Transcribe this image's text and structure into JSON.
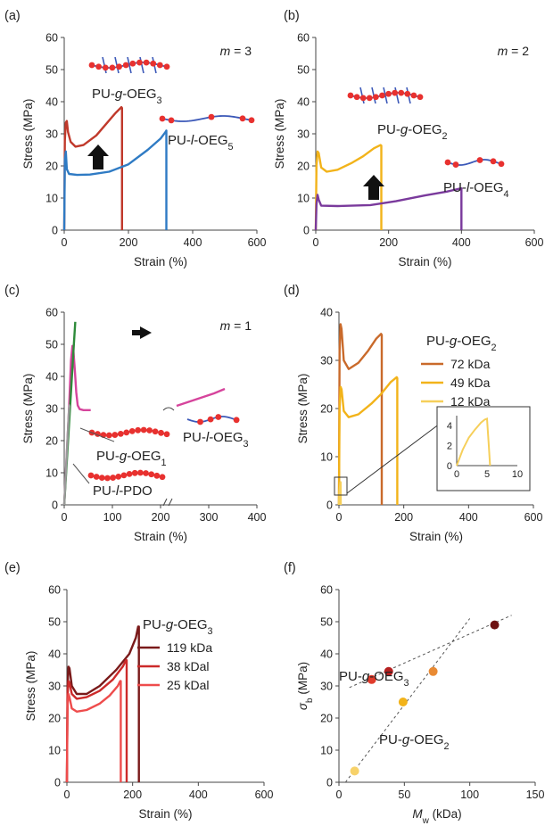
{
  "figure": {
    "panel_labels": [
      "(a)",
      "(b)",
      "(c)",
      "(d)",
      "(e)",
      "(f)"
    ]
  },
  "chart_data": [
    {
      "panel": "(a)",
      "type": "line",
      "annotation": "m = 3",
      "xlabel": "Strain (%)",
      "ylabel": "Stress (MPa)",
      "xlim": [
        0,
        600
      ],
      "ylim": [
        0,
        60
      ],
      "xticks": [
        "0",
        "200",
        "400",
        "600"
      ],
      "yticks": [
        "0",
        "10",
        "20",
        "30",
        "40",
        "50",
        "60"
      ],
      "series": [
        {
          "name": "PU-g-OEG3",
          "color": "#c0392b",
          "x": [
            0,
            2,
            5,
            8,
            12,
            20,
            35,
            60,
            100,
            130,
            160,
            178,
            180,
            180
          ],
          "y": [
            0,
            28,
            33.5,
            34,
            30.5,
            27.5,
            26,
            26.5,
            29.5,
            33,
            36.5,
            38.3,
            38,
            0
          ]
        },
        {
          "name": "PU-l-OEG5",
          "color": "#2f7bc4",
          "x": [
            0,
            2,
            5,
            8,
            15,
            40,
            80,
            140,
            200,
            260,
            300,
            315,
            318,
            318
          ],
          "y": [
            0,
            22,
            24.5,
            19,
            17.5,
            17.2,
            17.3,
            18.2,
            20.5,
            25,
            28.5,
            30.5,
            31,
            0
          ]
        }
      ],
      "labels": [
        {
          "text": "PU-",
          "italic": "g",
          "rest": "-OEG",
          "sub": "3"
        },
        {
          "text": "PU-",
          "italic": "l",
          "rest": "-OEG",
          "sub": "5"
        }
      ]
    },
    {
      "panel": "(b)",
      "type": "line",
      "annotation": "m = 2",
      "xlabel": "Strain (%)",
      "ylabel": "Stress (MPa)",
      "xlim": [
        0,
        600
      ],
      "ylim": [
        0,
        60
      ],
      "xticks": [
        "0",
        "200",
        "400",
        "600"
      ],
      "yticks": [
        "0",
        "10",
        "20",
        "30",
        "40",
        "50",
        "60"
      ],
      "series": [
        {
          "name": "PU-g-OEG2",
          "color": "#f2b31a",
          "x": [
            0,
            2,
            5,
            8,
            15,
            30,
            60,
            100,
            130,
            160,
            178,
            180,
            180
          ],
          "y": [
            0,
            20,
            24.5,
            24,
            19.5,
            18.2,
            18.8,
            21,
            23,
            25.5,
            26.5,
            26.3,
            0
          ]
        },
        {
          "name": "PU-l-OEG4",
          "color": "#7a3a9c",
          "x": [
            0,
            2,
            5,
            8,
            15,
            60,
            150,
            220,
            300,
            360,
            398,
            400,
            400
          ],
          "y": [
            0,
            8,
            11,
            9.5,
            7.6,
            7.5,
            7.8,
            9,
            10.8,
            12,
            13,
            13,
            0
          ]
        }
      ],
      "labels": [
        {
          "text": "PU-",
          "italic": "g",
          "rest": "-OEG",
          "sub": "2"
        },
        {
          "text": "PU-",
          "italic": "l",
          "rest": "-OEG",
          "sub": "4"
        }
      ]
    },
    {
      "panel": "(c)",
      "type": "line",
      "annotation": "m = 1",
      "xlabel": "Strain (%)",
      "ylabel": "Stress (MPa)",
      "xlim": [
        0,
        400
      ],
      "ylim": [
        0,
        60
      ],
      "xticks": [
        "0",
        "100",
        "200",
        "300",
        "400"
      ],
      "yticks": [
        "0",
        "10",
        "20",
        "30",
        "40",
        "50",
        "60"
      ],
      "series": [
        {
          "name": "PU-l-OEG3",
          "color": "#d6449c",
          "x": [
            0,
            10,
            14,
            17,
            19,
            22,
            25,
            28,
            32,
            40,
            55
          ],
          "y": [
            0,
            30,
            45,
            49.5,
            48,
            42,
            35,
            31,
            29.8,
            29.5,
            29.5
          ]
        },
        {
          "name": "PU-g-OEG1",
          "color": "#2e8b3a",
          "x": [
            0,
            5,
            10,
            15,
            20,
            23
          ],
          "y": [
            0,
            12.5,
            25,
            37.5,
            50,
            57
          ]
        },
        {
          "name": "PU-l-PDO",
          "color": "#9a9a9a",
          "x": [
            0,
            4,
            8,
            10,
            11,
            12
          ],
          "y": [
            0,
            12,
            24,
            30,
            31,
            31
          ]
        }
      ],
      "labels": [
        {
          "text": "PU-",
          "italic": "l",
          "rest": "-OEG",
          "sub": "3"
        },
        {
          "text": "PU-",
          "italic": "g",
          "rest": "-OEG",
          "sub": "1"
        },
        {
          "text": "PU-",
          "italic": "l",
          "rest": "-PDO",
          "sub": ""
        }
      ]
    },
    {
      "panel": "(d)",
      "type": "line",
      "xlabel": "Strain (%)",
      "ylabel": "Stress (MPa)",
      "xlim": [
        0,
        600
      ],
      "ylim": [
        0,
        40
      ],
      "xticks": [
        "0",
        "200",
        "400",
        "600"
      ],
      "yticks": [
        "0",
        "10",
        "20",
        "30",
        "40"
      ],
      "legend_title": {
        "text": "PU-",
        "italic": "g",
        "rest": "-OEG",
        "sub": "2"
      },
      "legend_position": "top-right",
      "series": [
        {
          "name": "72 kDa",
          "color": "#c96a2b",
          "x": [
            0,
            2,
            5,
            8,
            15,
            30,
            60,
            90,
            115,
            130,
            132,
            132
          ],
          "y": [
            0,
            32,
            37.5,
            36.5,
            30,
            28.2,
            29.5,
            32,
            34.5,
            35.5,
            35.3,
            0
          ]
        },
        {
          "name": "49 kDa",
          "color": "#f2b31a",
          "x": [
            0,
            2,
            5,
            8,
            15,
            30,
            60,
            100,
            130,
            160,
            178,
            180,
            180
          ],
          "y": [
            0,
            20,
            24.5,
            24,
            19.5,
            18.2,
            18.8,
            21,
            23,
            25.5,
            26.5,
            26.3,
            0
          ]
        },
        {
          "name": "12 kDa",
          "color": "#f6cf5a",
          "x": [
            0,
            1,
            2,
            3,
            4,
            4.6,
            5,
            5.3,
            5.5
          ],
          "y": [
            0,
            1.6,
            2.8,
            3.6,
            4.3,
            4.6,
            4.7,
            2,
            0
          ]
        }
      ],
      "inset": {
        "xlim": [
          0,
          10
        ],
        "ylim": [
          0,
          5
        ],
        "xticks": [
          "0",
          "5",
          "10"
        ],
        "yticks": [
          "0",
          "2",
          "4"
        ]
      }
    },
    {
      "panel": "(e)",
      "type": "line",
      "xlabel": "Strain (%)",
      "ylabel": "Stress (MPa)",
      "xlim": [
        0,
        600
      ],
      "ylim": [
        0,
        60
      ],
      "xticks": [
        "0",
        "200",
        "400",
        "600"
      ],
      "yticks": [
        "0",
        "10",
        "20",
        "30",
        "40",
        "50",
        "60"
      ],
      "legend_title": {
        "text": "PU-",
        "italic": "g",
        "rest": "-OEG",
        "sub": "3"
      },
      "legend_position": "top-right",
      "series": [
        {
          "name": "119 kDa",
          "color": "#7a1a1a",
          "x": [
            0,
            2,
            5,
            8,
            15,
            30,
            60,
            100,
            150,
            190,
            210,
            217,
            219,
            219
          ],
          "y": [
            0,
            30,
            36,
            35.5,
            30,
            27.5,
            27.5,
            30,
            35,
            40,
            45,
            48.5,
            48.5,
            0
          ]
        },
        {
          "name": "38 kDal",
          "color": "#cc2a2a",
          "x": [
            0,
            2,
            5,
            8,
            15,
            30,
            60,
            100,
            140,
            170,
            180,
            182,
            182
          ],
          "y": [
            0,
            27,
            31.5,
            31,
            27.5,
            26,
            26.5,
            28.5,
            32,
            36,
            38,
            38,
            0
          ]
        },
        {
          "name": "25 kDal",
          "color": "#ee4c4c",
          "x": [
            0,
            2,
            5,
            8,
            15,
            30,
            60,
            100,
            130,
            155,
            162,
            164,
            164
          ],
          "y": [
            0,
            24,
            27.5,
            26.5,
            23,
            22,
            22.5,
            24.5,
            27,
            30,
            31.5,
            31.5,
            0
          ]
        }
      ]
    },
    {
      "panel": "(f)",
      "type": "scatter",
      "xlabel": {
        "main": "M",
        "sub": "w",
        "rest": " (kDa)"
      },
      "ylabel": {
        "main": "σ",
        "sub": "b",
        "rest": " (MPa)"
      },
      "xlim": [
        0,
        150
      ],
      "ylim": [
        0,
        60
      ],
      "xticks": [
        "0",
        "50",
        "100",
        "150"
      ],
      "yticks": [
        "0",
        "10",
        "20",
        "30",
        "40",
        "50",
        "60"
      ],
      "series": [
        {
          "name": "PU-g-OEG3",
          "points": [
            {
              "x": 25,
              "y": 32,
              "color": "#e03b2b"
            },
            {
              "x": 38,
              "y": 34.5,
              "color": "#b52020"
            },
            {
              "x": 119,
              "y": 49,
              "color": "#6e1212"
            }
          ],
          "fit": {
            "x": [
              8,
              132
            ],
            "y": [
              29.5,
              52
            ]
          }
        },
        {
          "name": "PU-g-OEG2",
          "points": [
            {
              "x": 12,
              "y": 3.5,
              "color": "#f7d26a"
            },
            {
              "x": 49,
              "y": 25,
              "color": "#f2b31a"
            },
            {
              "x": 72,
              "y": 34.5,
              "color": "#e98a33"
            }
          ],
          "fit": {
            "x": [
              5,
              100
            ],
            "y": [
              0,
              51
            ]
          }
        }
      ],
      "labels": [
        {
          "text": "PU-",
          "italic": "g",
          "rest": "-OEG",
          "sub": "3"
        },
        {
          "text": "PU-",
          "italic": "g",
          "rest": "-OEG",
          "sub": "2"
        }
      ]
    }
  ]
}
